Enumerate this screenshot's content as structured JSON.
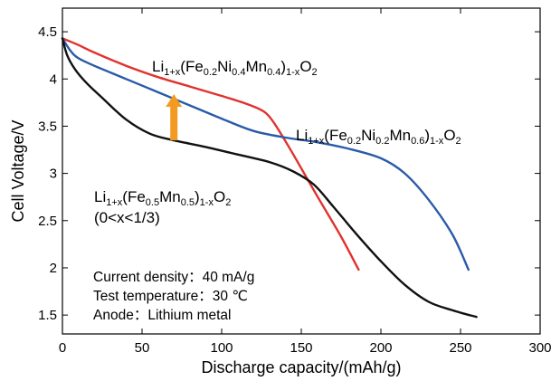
{
  "chart_data": {
    "type": "line",
    "title": "",
    "xlabel": "Discharge capacity/(mAh/g)",
    "ylabel": "Cell Voltage/V",
    "xlim": [
      0,
      300
    ],
    "ylim": [
      1.3,
      4.75
    ],
    "x_ticks": [
      0,
      50,
      100,
      150,
      200,
      250,
      300
    ],
    "y_ticks": [
      1.5,
      2,
      2.5,
      3,
      3.5,
      4,
      4.5
    ],
    "grid": false,
    "legend": "none",
    "series": [
      {
        "color": "#e0322e",
        "label_parts": [
          {
            "t": "Li",
            "s": ""
          },
          {
            "t": "1+x",
            "s": "sub"
          },
          {
            "t": "(Fe",
            "s": ""
          },
          {
            "t": "0.2",
            "s": "sub"
          },
          {
            "t": "Ni",
            "s": ""
          },
          {
            "t": "0.4",
            "s": "sub"
          },
          {
            "t": "Mn",
            "s": ""
          },
          {
            "t": "0.4",
            "s": "sub"
          },
          {
            "t": ")",
            "s": ""
          },
          {
            "t": "1-x",
            "s": "sub"
          },
          {
            "t": "O",
            "s": ""
          },
          {
            "t": "2",
            "s": "sub"
          }
        ],
        "points": [
          [
            0,
            4.43
          ],
          [
            10,
            4.36
          ],
          [
            20,
            4.28
          ],
          [
            40,
            4.14
          ],
          [
            60,
            4.02
          ],
          [
            80,
            3.92
          ],
          [
            100,
            3.82
          ],
          [
            115,
            3.74
          ],
          [
            125,
            3.67
          ],
          [
            130,
            3.6
          ],
          [
            135,
            3.48
          ],
          [
            145,
            3.2
          ],
          [
            160,
            2.76
          ],
          [
            175,
            2.33
          ],
          [
            186,
            1.98
          ]
        ]
      },
      {
        "color": "#2a5aa8",
        "label_parts": [
          {
            "t": "Li",
            "s": ""
          },
          {
            "t": "1+x",
            "s": "sub"
          },
          {
            "t": "(Fe",
            "s": ""
          },
          {
            "t": "0.2",
            "s": "sub"
          },
          {
            "t": "Ni",
            "s": ""
          },
          {
            "t": "0.2",
            "s": "sub"
          },
          {
            "t": "Mn",
            "s": ""
          },
          {
            "t": "0.6",
            "s": "sub"
          },
          {
            "t": ")",
            "s": ""
          },
          {
            "t": "1-x",
            "s": "sub"
          },
          {
            "t": "O",
            "s": ""
          },
          {
            "t": "2",
            "s": "sub"
          }
        ],
        "points": [
          [
            0,
            4.43
          ],
          [
            5,
            4.3
          ],
          [
            10,
            4.22
          ],
          [
            20,
            4.14
          ],
          [
            40,
            4.0
          ],
          [
            60,
            3.86
          ],
          [
            80,
            3.72
          ],
          [
            100,
            3.58
          ],
          [
            120,
            3.45
          ],
          [
            140,
            3.38
          ],
          [
            160,
            3.33
          ],
          [
            180,
            3.26
          ],
          [
            200,
            3.16
          ],
          [
            215,
            3.0
          ],
          [
            230,
            2.72
          ],
          [
            245,
            2.35
          ],
          [
            255,
            1.98
          ]
        ]
      },
      {
        "color": "#111111",
        "label_parts": [
          {
            "t": "Li",
            "s": ""
          },
          {
            "t": "1+x",
            "s": "sub"
          },
          {
            "t": "(Fe",
            "s": ""
          },
          {
            "t": "0.5",
            "s": "sub"
          },
          {
            "t": "Mn",
            "s": ""
          },
          {
            "t": "0.5",
            "s": "sub"
          },
          {
            "t": ")",
            "s": ""
          },
          {
            "t": "1-x",
            "s": "sub"
          },
          {
            "t": "O",
            "s": ""
          },
          {
            "t": "2",
            "s": "sub"
          }
        ],
        "label_line2": "(0<x<1/3)",
        "points": [
          [
            0,
            4.43
          ],
          [
            3,
            4.25
          ],
          [
            8,
            4.1
          ],
          [
            15,
            3.96
          ],
          [
            25,
            3.8
          ],
          [
            40,
            3.57
          ],
          [
            55,
            3.42
          ],
          [
            70,
            3.35
          ],
          [
            90,
            3.28
          ],
          [
            110,
            3.2
          ],
          [
            130,
            3.12
          ],
          [
            145,
            3.02
          ],
          [
            158,
            2.88
          ],
          [
            170,
            2.65
          ],
          [
            185,
            2.35
          ],
          [
            200,
            2.07
          ],
          [
            215,
            1.82
          ],
          [
            230,
            1.64
          ],
          [
            245,
            1.55
          ],
          [
            260,
            1.48
          ]
        ]
      }
    ],
    "annotation_lines": [
      "Current density：40 mA/g",
      "Test temperature：30 ℃",
      "Anode：Lithium metal"
    ],
    "arrow": {
      "x": 70,
      "y_from": 3.35,
      "y_to": 3.84,
      "color": "#f39a22"
    }
  }
}
